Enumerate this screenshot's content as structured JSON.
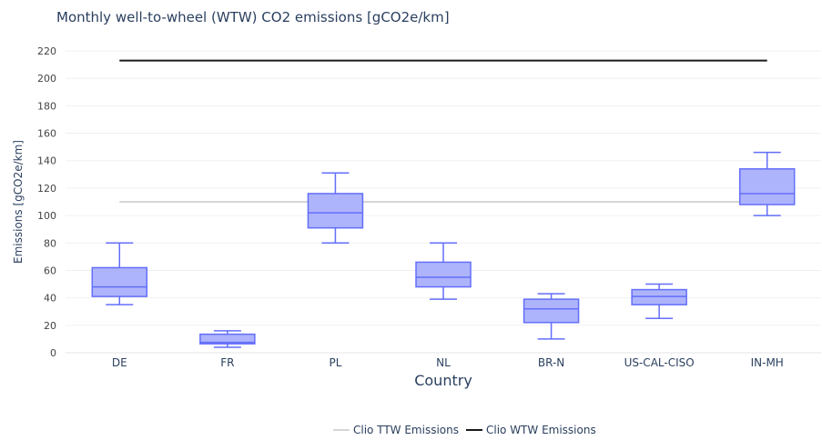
{
  "chart_data": {
    "type": "box",
    "title": "Monthly well-to-wheel (WTW) CO2 emissions [gCO2e/km]",
    "xlabel": "Country",
    "ylabel": "Emissions [gCO2e/km]",
    "ylim": [
      0,
      220
    ],
    "yticks": [
      0,
      20,
      40,
      60,
      80,
      100,
      120,
      140,
      160,
      180,
      200,
      220
    ],
    "categories": [
      "DE",
      "FR",
      "PL",
      "NL",
      "BR-N",
      "US-CAL-CISO",
      "IN-MH"
    ],
    "boxes": [
      {
        "category": "DE",
        "min": 35,
        "q1": 41,
        "median": 48,
        "q3": 62,
        "max": 80
      },
      {
        "category": "FR",
        "min": 4,
        "q1": 6.5,
        "median": 7.5,
        "q3": 13.5,
        "max": 16
      },
      {
        "category": "PL",
        "min": 80,
        "q1": 91,
        "median": 102,
        "q3": 116,
        "max": 131
      },
      {
        "category": "NL",
        "min": 39,
        "q1": 48,
        "median": 55,
        "q3": 66,
        "max": 80
      },
      {
        "category": "BR-N",
        "min": 10,
        "q1": 22,
        "median": 32,
        "q3": 39,
        "max": 43
      },
      {
        "category": "US-CAL-CISO",
        "min": 25,
        "q1": 35,
        "median": 41,
        "q3": 46,
        "max": 50
      },
      {
        "category": "IN-MH",
        "min": 100,
        "q1": 108,
        "median": 116,
        "q3": 134,
        "max": 146
      }
    ],
    "box_color": "#636efa",
    "box_fill": "#aeb4fb",
    "lines": [
      {
        "name": "Clio TTW Emissions",
        "value": 110,
        "color": "#c8c8c8"
      },
      {
        "name": "Clio WTW Emissions",
        "value": 213,
        "color": "#1a1a1a"
      }
    ],
    "grid": true,
    "legend_position": "bottom-center"
  }
}
